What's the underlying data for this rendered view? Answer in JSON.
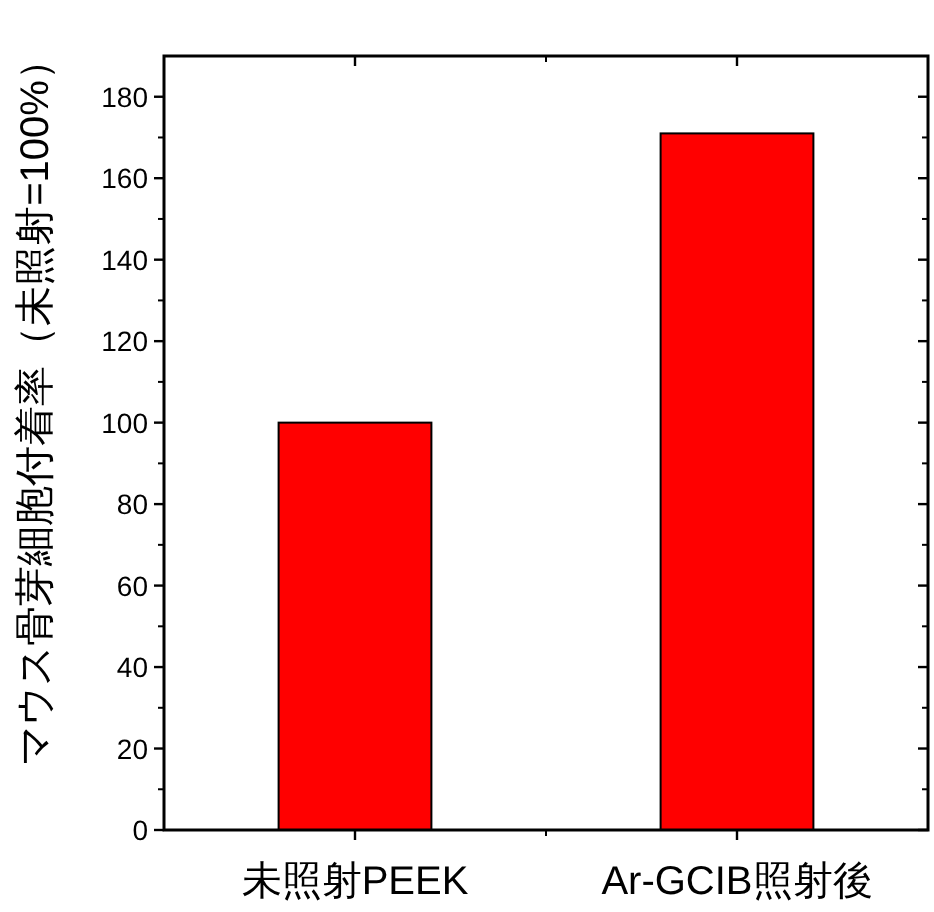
{
  "chart_data": {
    "type": "bar",
    "ylabel": "マウス骨芽細胞付着率（未照射=100%）",
    "categories": [
      "未照射PEEK",
      "Ar-GCIB照射後"
    ],
    "values": [
      100,
      171
    ],
    "color": "#ff0000",
    "ylim": [
      0,
      190
    ],
    "yticks": [
      0,
      20,
      40,
      60,
      80,
      100,
      120,
      140,
      160,
      180
    ],
    "tick_labels": "xy_left"
  }
}
